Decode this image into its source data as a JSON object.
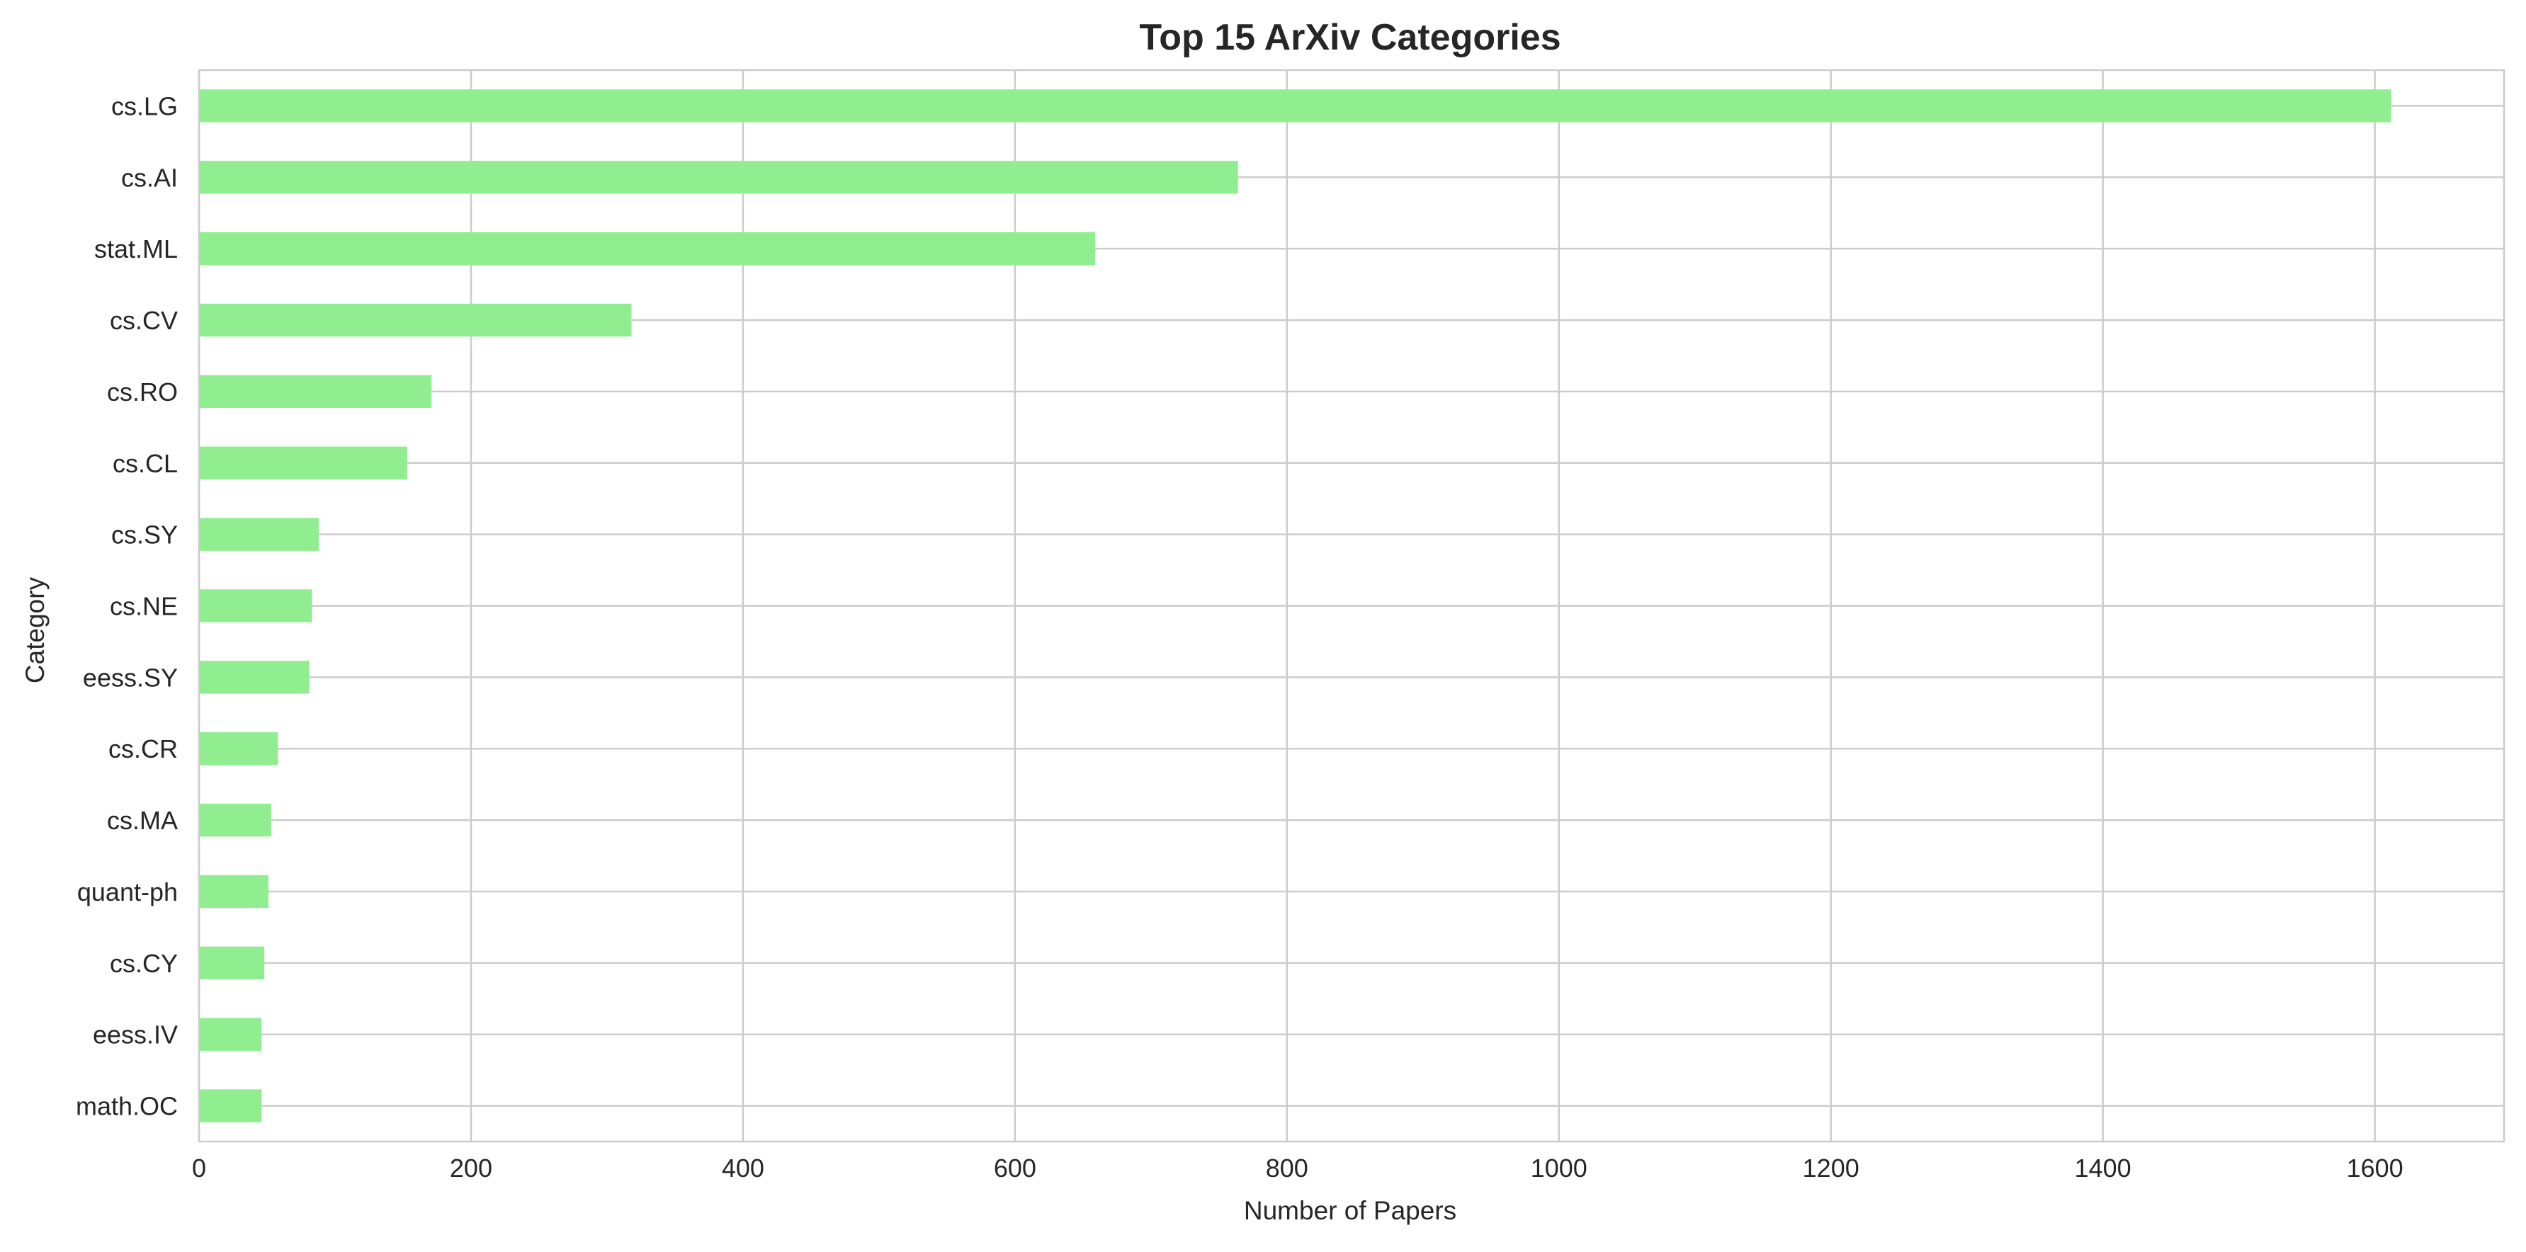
{
  "chart_data": {
    "type": "bar",
    "orientation": "horizontal",
    "title": "Top 15 ArXiv Categories",
    "xlabel": "Number of Papers",
    "ylabel": "Category",
    "categories": [
      "cs.LG",
      "cs.AI",
      "stat.ML",
      "cs.CV",
      "cs.RO",
      "cs.CL",
      "cs.SY",
      "cs.NE",
      "eess.SY",
      "cs.CR",
      "cs.MA",
      "quant-ph",
      "cs.CY",
      "eess.IV",
      "math.OC"
    ],
    "values": [
      1612,
      764,
      659,
      318,
      171,
      153,
      88,
      83,
      81,
      58,
      53,
      51,
      48,
      46,
      46
    ],
    "xlim": [
      0,
      1695
    ],
    "xticks": [
      0,
      200,
      400,
      600,
      800,
      1000,
      1200,
      1400,
      1600
    ],
    "xtick_labels": [
      "0",
      "200",
      "400",
      "600",
      "800",
      "1000",
      "1200",
      "1400",
      "1600"
    ],
    "grid": true,
    "bar_color": "#90ee90"
  }
}
